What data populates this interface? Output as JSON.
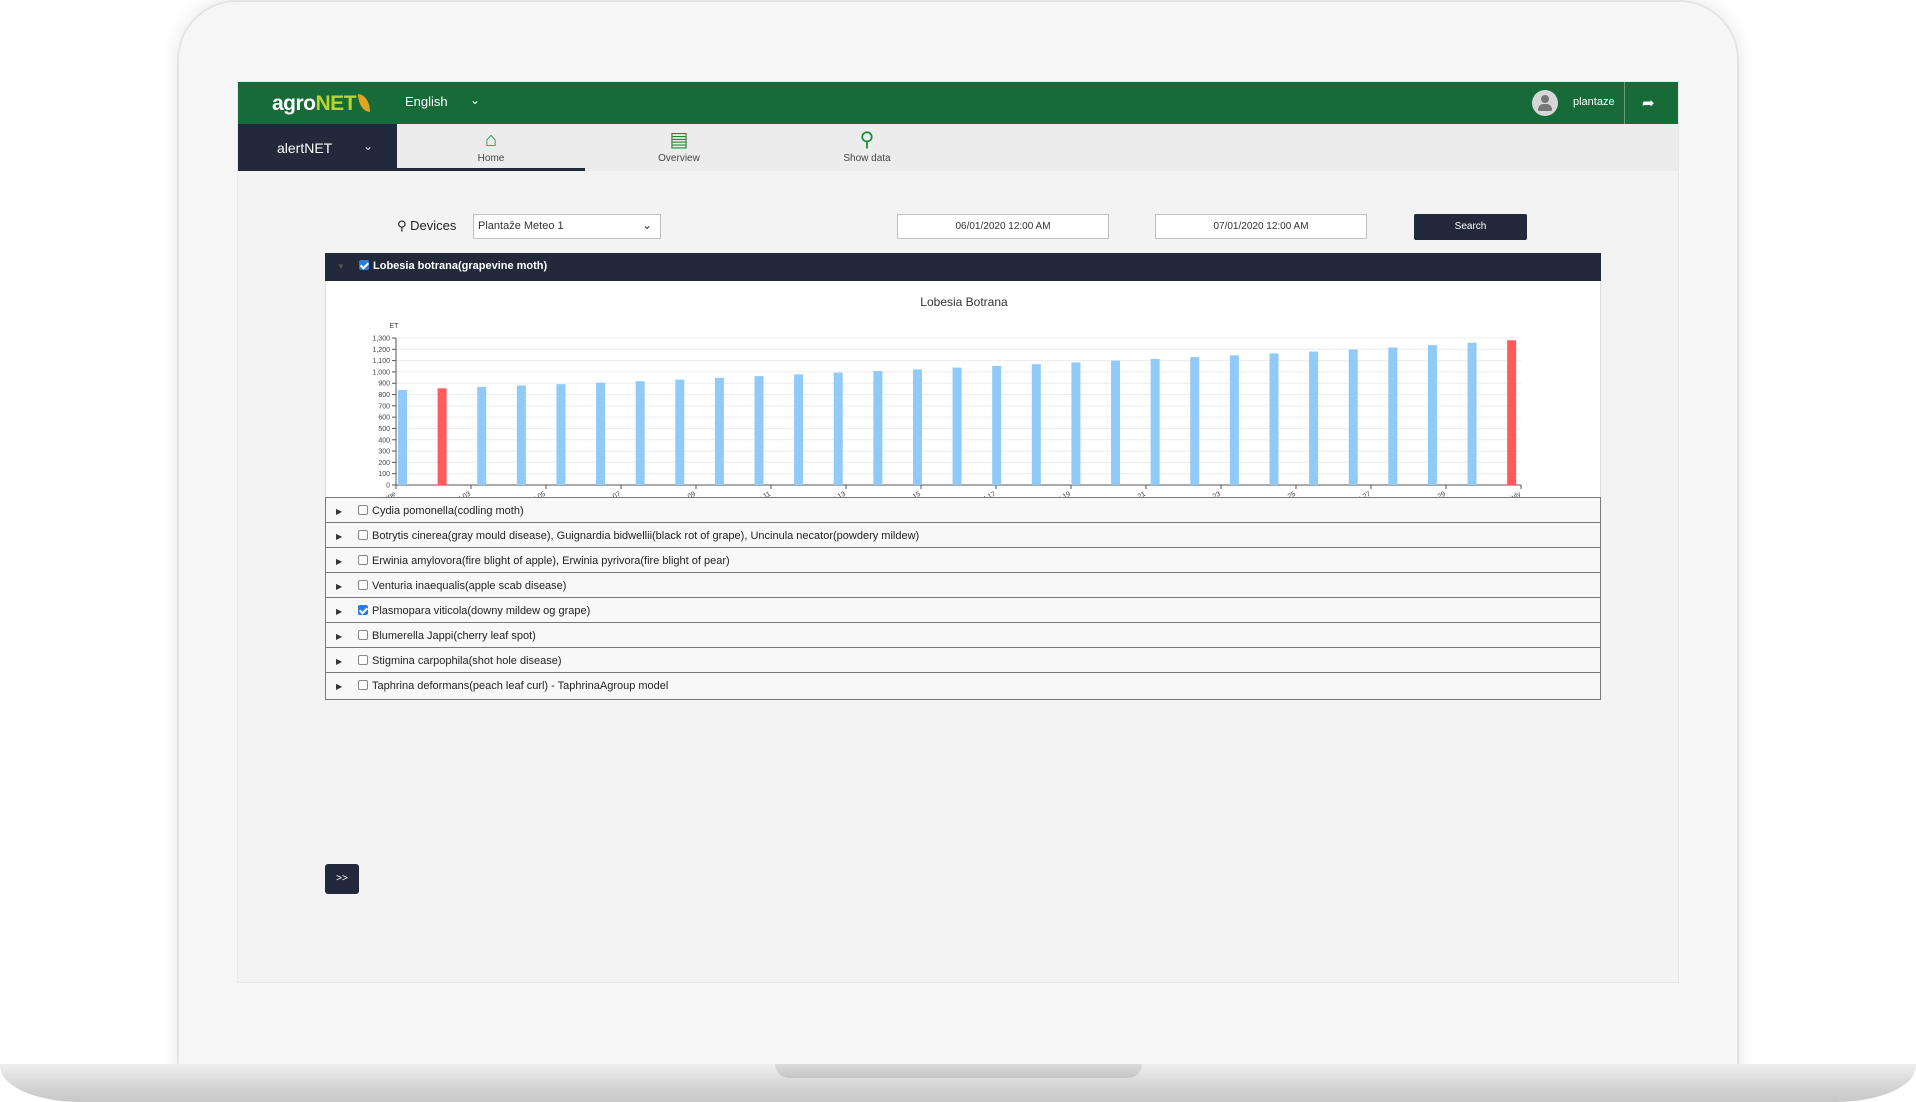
{
  "header": {
    "logo_agro": "agro",
    "logo_net": "NET",
    "language": "English",
    "user": "plantaze"
  },
  "subnav": {
    "module": "alertNET",
    "tabs": [
      {
        "label": "Home",
        "icon": "home-icon",
        "active": true
      },
      {
        "label": "Overview",
        "icon": "document-search-icon",
        "active": false
      },
      {
        "label": "Show data",
        "icon": "map-pin-search-icon",
        "active": false
      }
    ]
  },
  "filters": {
    "devices_label": "Devices",
    "device": "Plantaže Meteo 1",
    "date_from": "06/01/2020 12:00 AM",
    "date_to": "07/01/2020 12:00 AM",
    "search_label": "Search"
  },
  "expanded_panel": {
    "label": "Lobesia botrana(grapevine moth)",
    "checked": true
  },
  "chart_data": {
    "type": "bar",
    "title": "Lobesia Botrana",
    "ylabel": "ET",
    "xlabel": "",
    "ylim": [
      0,
      1300
    ],
    "yticks": [
      "0",
      "100",
      "200",
      "300",
      "400",
      "500",
      "600",
      "700",
      "800",
      "900",
      "1,000",
      "1,100",
      "1,200",
      "1,300"
    ],
    "xtick_labels": [
      "june",
      "wed 03",
      "fri 05",
      "jun 07",
      "tue 09",
      "thu 11",
      "sat 13",
      "mon 15",
      "wed 17",
      "fri 19",
      "jun 21",
      "tue 23",
      "thu 25",
      "sat 27",
      "mon 29",
      "july"
    ],
    "values": [
      840,
      855,
      868,
      880,
      892,
      905,
      918,
      932,
      948,
      963,
      978,
      993,
      1008,
      1022,
      1038,
      1053,
      1068,
      1084,
      1100,
      1115,
      1131,
      1147,
      1164,
      1180,
      1198,
      1216,
      1237,
      1258,
      1280
    ],
    "highlight_indices": [
      1,
      28
    ],
    "colors": {
      "normal": "#90caf9",
      "highlight": "#ff5b5b"
    },
    "grid": true
  },
  "diseases": [
    {
      "label": "Cydia pomonella(codling moth)",
      "checked": false
    },
    {
      "label": "Botrytis cinerea(gray mould disease), Guignardia bidwellii(black rot of grape), Uncinula necator(powdery mildew)",
      "checked": false
    },
    {
      "label": "Erwinia amylovora(fire blight of apple), Erwinia pyrivora(fire blight of pear)",
      "checked": false
    },
    {
      "label": "Venturia inaequalis(apple scab disease)",
      "checked": false
    },
    {
      "label": "Plasmopara viticola(downy mildew og grape)",
      "checked": true
    },
    {
      "label": "Blumerella Jappi(cherry leaf spot)",
      "checked": false
    },
    {
      "label": "Stigmina carpophila(shot hole disease)",
      "checked": false
    },
    {
      "label": "Taphrina deformans(peach leaf curl) - TaphrinaAgroup model",
      "checked": false
    }
  ],
  "next_label": ">>"
}
